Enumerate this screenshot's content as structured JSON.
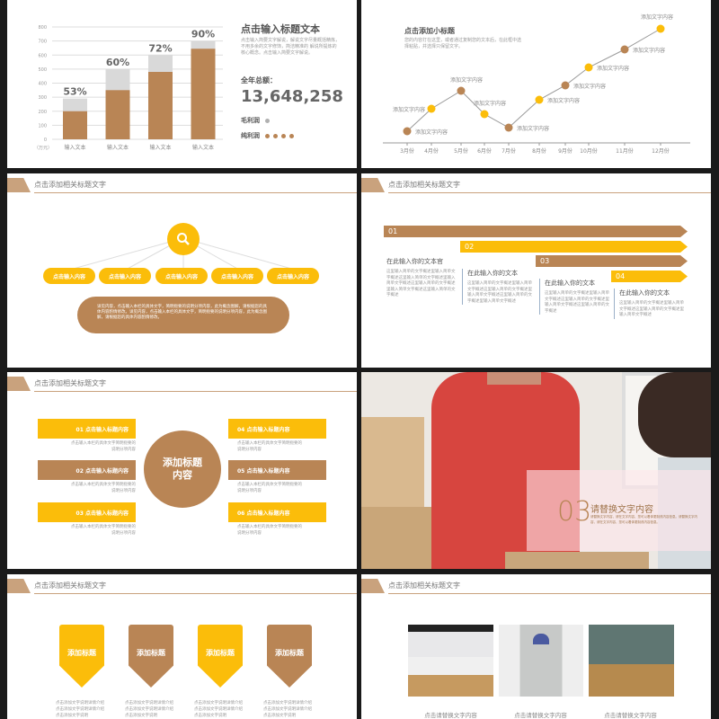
{
  "colors": {
    "brown": "#b98555",
    "yellow": "#fbbd0a",
    "gray": "#d9d9d9",
    "dark_bg": "#1a1a1a"
  },
  "header_title": "点击添加相关标题文字",
  "slide1": {
    "title": "点击输入标题文本",
    "body": "点击输入简要文字解说，解说文字尽量概括精炼，不用多余的文字修饰，简洁精准的 解说所提炼的核心概念。点击输入简要文字解说。",
    "total_label": "全年总额：",
    "total_value": "13,648,258",
    "legend": [
      {
        "label": "毛利润",
        "dots": 1,
        "color": "#b0b0b0"
      },
      {
        "label": "纯利润",
        "dots": 4,
        "color": "#b98555"
      }
    ]
  },
  "slide2": {
    "subtitle": "点击添加小标题",
    "body": "您的内容打在这里，或者通过复制您的文本后，在此框中选择粘贴，并选择只保留文字。"
  },
  "slide3": {
    "icon": "search-icon",
    "pills": [
      "点击输入内容",
      "点击输入内容",
      "点击输入内容",
      "点击输入内容",
      "点击输入内容"
    ],
    "body": "详见内容，点击输入本栏的具体文字，简明扼要的说明分项内容，此为概念图解，请根据您的具体内容酌情修改。详见内容，点击输入本栏的具体文字，简明扼要的说明分项内容，此为概念图解，请根据您的具体内容酌情修改。"
  },
  "slide4": {
    "steps": [
      {
        "num": "01",
        "heading": "在此输入你的文本官",
        "body": "这里输入简单的文字概述里输入简单文字概述这里输入简单的文字概述里输入简单文字概述这里输入简单的文字概述里输入简单文字概述这里输入简单的文字概述"
      },
      {
        "num": "02",
        "heading": "在此输入你的文本",
        "body": "这里输入简单的文字概述里输入简单文字概述这里输入简单的文字概述里输入简单文字概述这里输入简单的文字概述里输入简单文字概述"
      },
      {
        "num": "03",
        "heading": "在此输入你的文本",
        "body": "这里输入简单的文字概述里输入简单文字概述这里输入简单的文字概述里输入简单文字概述这里输入简单的文字概述"
      },
      {
        "num": "04",
        "heading": "在此输入你的文本",
        "body": "这里输入简单的文字概述里输入简单文字概述这里输入简单的文字概述里输入简单文字概述"
      }
    ]
  },
  "slide5": {
    "center": "添加标题内容",
    "items": [
      {
        "label": "01 点击输入标题内容",
        "desc": "点击输入本栏的具体文字简明扼要的说明分项内容"
      },
      {
        "label": "02 点击输入标题内容",
        "desc": "点击输入本栏的具体文字简明扼要的说明分项内容"
      },
      {
        "label": "03 点击输入标题内容",
        "desc": "点击输入本栏的具体文字简明扼要的说明分项内容"
      },
      {
        "label": "04 点击输入标题内容",
        "desc": "点击输入本栏的具体文字简明扼要的说明分项内容"
      },
      {
        "label": "05 点击输入标题内容",
        "desc": "点击输入本栏的具体文字简明扼要的说明分项内容"
      },
      {
        "label": "06 点击输入标题内容",
        "desc": "点击输入本栏的具体文字简明扼要的说明分项内容"
      }
    ]
  },
  "slide6": {
    "num": "03",
    "title": "请替换文字内容",
    "body": "请替换文字内容，请在文字内容，您可以着体更制改内容信息。请替换文字内容，请在文字内容，您可以着体更制改内容信息。"
  },
  "slide7": {
    "shields": [
      "添加标题",
      "添加标题",
      "添加标题",
      "添加标题"
    ],
    "desc": "点击添加文字说明详情介绍点击添加文字说明详情介绍点击添加文字说明"
  },
  "slide8": {
    "captions": [
      "点击请替换文字内容",
      "点击请替换文字内容",
      "点击请替换文字内容"
    ]
  },
  "chart_data": [
    {
      "type": "bar",
      "categories": [
        "输入文本",
        "输入文本",
        "输入文本",
        "输入文本"
      ],
      "series": [
        {
          "values": [
            200,
            350,
            480,
            645
          ]
        },
        {
          "values": [
            290,
            500,
            600,
            700
          ]
        }
      ],
      "data_labels": [
        "53%",
        "60%",
        "72%",
        "90%"
      ],
      "ylabel": "（万元）",
      "ylim": [
        0,
        800
      ],
      "yticks": [
        0,
        100,
        200,
        300,
        400,
        500,
        600,
        700,
        800
      ],
      "grid": true
    },
    {
      "type": "line",
      "categories": [
        "3月份",
        "4月份",
        "5月份",
        "6月份",
        "7月份",
        "8月份",
        "9月份",
        "10月份",
        "11月份",
        "12月份"
      ],
      "values": [
        14,
        39,
        59,
        33,
        18,
        49,
        65,
        85,
        105,
        128
      ],
      "point_labels": [
        "添加文字内容",
        "添加文字内容",
        "添加文字内容",
        "添加文字内容",
        "添加文字内容",
        "添加文字内容",
        "添加文字内容",
        "添加文字内容",
        "添加文字内容",
        "添加文字内容"
      ],
      "point_colors": [
        "#b98555",
        "#fbbd0a",
        "#b98555",
        "#fbbd0a",
        "#b98555",
        "#fbbd0a",
        "#b98555",
        "#fbbd0a",
        "#b98555",
        "#fbbd0a"
      ]
    }
  ]
}
